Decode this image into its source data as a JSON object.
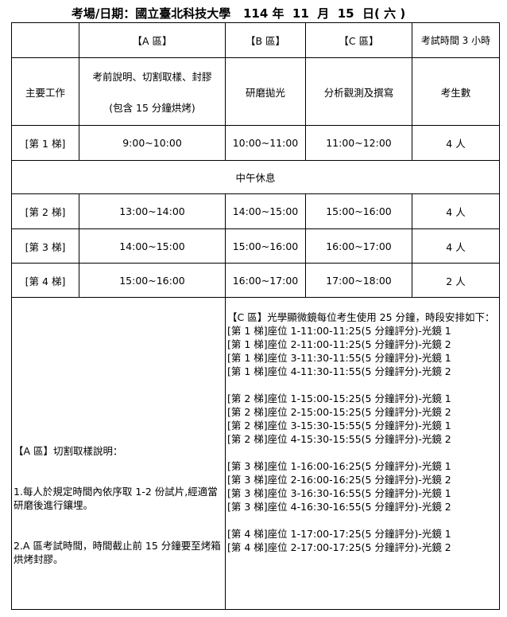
{
  "title": "考場/日期：國立臺北科技大學   114 年  11  月  15  日( 六 )",
  "header": {
    "col0": "",
    "colA": "【A 區】",
    "colB": "【B 區】",
    "colC": "【C 區】",
    "colTime": "考試時間 3 小時"
  },
  "tasks": {
    "label": "主要工作",
    "a_line1": "考前說明、切割取樣、封膠",
    "a_line2": "(包含 15 分鐘烘烤)",
    "b": "研磨拋光",
    "c": "分析觀測及撰寫",
    "count": "考生數"
  },
  "rows": [
    {
      "label": "[第 1 梯]",
      "a": "9:00~10:00",
      "b": "10:00~11:00",
      "c": "11:00~12:00",
      "count": "4 人"
    },
    {
      "label": "[第 2 梯]",
      "a": "13:00~14:00",
      "b": "14:00~15:00",
      "c": "15:00~16:00",
      "count": "4 人"
    },
    {
      "label": "[第 3 梯]",
      "a": "14:00~15:00",
      "b": "15:00~16:00",
      "c": "16:00~17:00",
      "count": "4 人"
    },
    {
      "label": "[第 4 梯]",
      "a": "15:00~16:00",
      "b": "16:00~17:00",
      "c": "17:00~18:00",
      "count": "2 人"
    }
  ],
  "lunch": "中午休息",
  "left_note": [
    "【A 區】切割取樣說明：",
    "1.每人於規定時間內依序取 1-2 份試片,經適當研磨後進行鑲埋。",
    "2.A 區考試時間，時間截止前 15 分鐘要至烤箱烘烤封膠。"
  ],
  "right_note": [
    "【C 區】光學顯微鏡每位考生使用 25 分鐘，時段安排如下：",
    "[第 1 梯]座位 1-11:00-11:25(5 分鐘評分)-光鏡 1",
    "[第 1 梯]座位 2-11:00-11:25(5 分鐘評分)-光鏡 2",
    "[第 1 梯]座位 3-11:30-11:55(5 分鐘評分)-光鏡 1",
    "[第 1 梯]座位 4-11:30-11:55(5 分鐘評分)-光鏡 2",
    "",
    "[第 2 梯]座位 1-15:00-15:25(5 分鐘評分)-光鏡 1",
    "[第 2 梯]座位 2-15:00-15:25(5 分鐘評分)-光鏡 2",
    "[第 2 梯]座位 3-15:30-15:55(5 分鐘評分)-光鏡 1",
    "[第 2 梯]座位 4-15:30-15:55(5 分鐘評分)-光鏡 2",
    "",
    "[第 3 梯]座位 1-16:00-16:25(5 分鐘評分)-光鏡 1",
    "[第 3 梯]座位 2-16:00-16:25(5 分鐘評分)-光鏡 2",
    "[第 3 梯]座位 3-16:30-16:55(5 分鐘評分)-光鏡 1",
    "[第 3 梯]座位 4-16:30-16:55(5 分鐘評分)-光鏡 2",
    "",
    "[第 4 梯]座位 1-17:00-17:25(5 分鐘評分)-光鏡 1",
    "[第 4 梯]座位 2-17:00-17:25(5 分鐘評分)-光鏡 2"
  ]
}
